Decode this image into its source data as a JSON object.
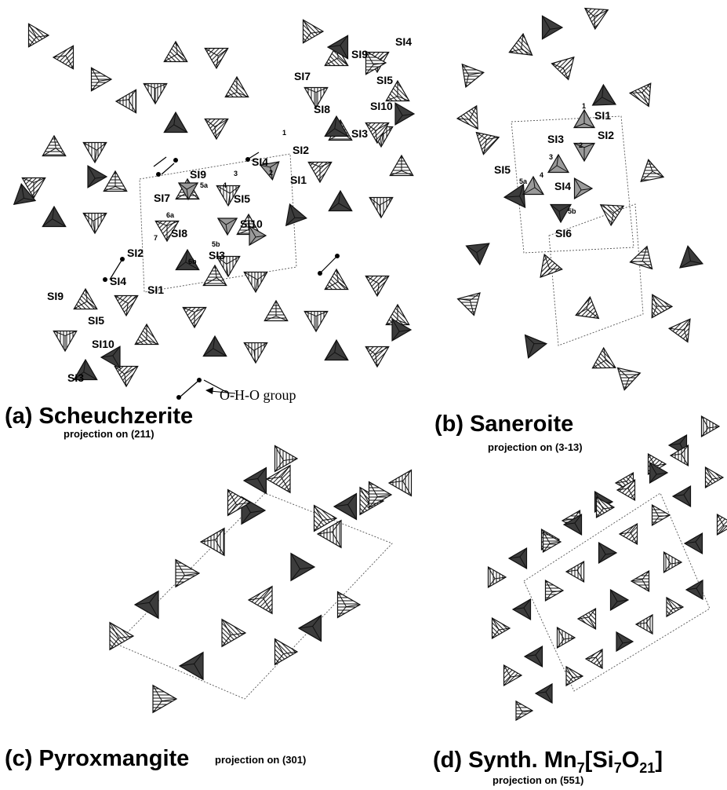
{
  "panels": {
    "a": {
      "title": "(a) Scheuchzerite",
      "subtitle": "projection on (211)"
    },
    "b": {
      "title": "(b) Saneroite",
      "subtitle": "projection on (3-13)"
    },
    "c": {
      "title": "(c) Pyroxmangite",
      "subtitle": "projection on (301)"
    },
    "d": {
      "title_prefix": "(d) Synth. Mn",
      "sub7a": "7",
      "title_mid": "[Si",
      "sub7b": "7",
      "title_o": "O",
      "sub21": "21",
      "title_end": "]",
      "subtitle": "projection on (551)"
    }
  },
  "labels_a": {
    "si4_top": "SI4",
    "si9_top": "SI9",
    "si7_top": "SI7",
    "si5_top": "SI5",
    "si8_top": "SI8",
    "si10_top": "SI10",
    "si3_top": "SI3",
    "si2_c": "SI2",
    "si4_c": "SI4",
    "si1_c": "SI1",
    "si9_c": "SI9",
    "si5_c": "SI5",
    "si7_c": "SI7",
    "si8_c": "SI8",
    "si10_c": "SI10",
    "si3_c": "SI3",
    "si2_l": "SI2",
    "si4_l": "SI4",
    "si1_l": "SI1",
    "si9_l": "SI9",
    "si5_l": "SI5",
    "si10_l": "SI10",
    "si3_l": "SI3",
    "e1": "1",
    "e2": "2",
    "e3": "3",
    "e4": "4",
    "e5a": "5a",
    "e5b": "5b",
    "e6a": "6a",
    "e6b": "6b",
    "e7": "7",
    "oho": "O-H-O group"
  },
  "labels_b": {
    "si1": "SI1",
    "si2": "SI2",
    "si3": "SI3",
    "si4": "SI4",
    "si5": "SI5",
    "si6": "SI6",
    "e1": "1",
    "e2": "2",
    "e3": "3",
    "e4": "4",
    "e5a": "5a",
    "e5b": "5b"
  }
}
